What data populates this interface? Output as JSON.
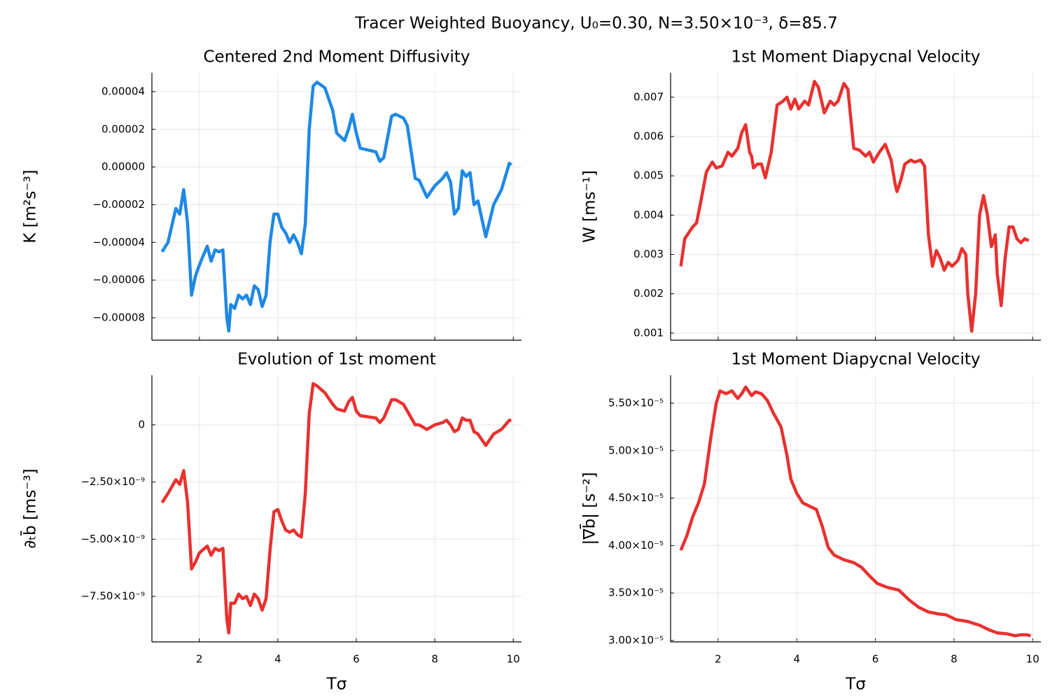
{
  "title": "Tracer Weighted Buoyancy, U₀=0.30, N=3.50×10⁻³, δ=85.7",
  "chart_data": [
    {
      "type": "line",
      "title": "Centered 2nd Moment Diffusivity",
      "ylabel": "K [m²s⁻³]",
      "color": "#1e88e5",
      "grid": true,
      "x_tick_labels": false,
      "xlim": [
        0.79,
        10.21
      ],
      "ylim": [
        -9.19e-05,
        5e-05
      ],
      "xticks": [
        2,
        4,
        6,
        8,
        10
      ],
      "yticks": [
        {
          "value": 4e-05,
          "label": "0.00004"
        },
        {
          "value": 2e-05,
          "label": "0.00002"
        },
        {
          "value": 0,
          "label": "0.00000"
        },
        {
          "value": -2e-05,
          "label": "−0.00002"
        },
        {
          "value": -4e-05,
          "label": "−0.00004"
        },
        {
          "value": -6e-05,
          "label": "−0.00006"
        },
        {
          "value": -8e-05,
          "label": "−0.00008"
        }
      ],
      "x": [
        1.05,
        1.2,
        1.4,
        1.5,
        1.6,
        1.7,
        1.8,
        1.9,
        2.0,
        2.2,
        2.3,
        2.4,
        2.5,
        2.6,
        2.7,
        2.75,
        2.8,
        2.9,
        3.0,
        3.1,
        3.2,
        3.3,
        3.4,
        3.5,
        3.6,
        3.7,
        3.8,
        3.9,
        4.0,
        4.1,
        4.2,
        4.3,
        4.4,
        4.5,
        4.6,
        4.7,
        4.8,
        4.9,
        5.0,
        5.2,
        5.4,
        5.5,
        5.7,
        5.8,
        5.9,
        6.0,
        6.1,
        6.3,
        6.5,
        6.6,
        6.7,
        6.9,
        7.0,
        7.2,
        7.3,
        7.5,
        7.6,
        7.8,
        8.0,
        8.2,
        8.3,
        8.4,
        8.5,
        8.6,
        8.7,
        8.8,
        8.9,
        9.0,
        9.1,
        9.3,
        9.5,
        9.7,
        9.8,
        9.9,
        9.95
      ],
      "values": [
        -4.5e-05,
        -4e-05,
        -2.2e-05,
        -2.5e-05,
        -1.2e-05,
        -3e-05,
        -6.8e-05,
        -5.8e-05,
        -5.2e-05,
        -4.2e-05,
        -5e-05,
        -4.4e-05,
        -4.5e-05,
        -4.4e-05,
        -8e-05,
        -8.7e-05,
        -7.3e-05,
        -7.5e-05,
        -6.8e-05,
        -7e-05,
        -6.8e-05,
        -7.3e-05,
        -6.3e-05,
        -6.5e-05,
        -7.4e-05,
        -6.8e-05,
        -4e-05,
        -2.5e-05,
        -2.5e-05,
        -3.2e-05,
        -3.5e-05,
        -4e-05,
        -3.6e-05,
        -4e-05,
        -4.6e-05,
        -3e-05,
        2e-05,
        4.3e-05,
        4.5e-05,
        4.2e-05,
        3e-05,
        1.8e-05,
        1.4e-05,
        2e-05,
        2.8e-05,
        1.8e-05,
        1e-05,
        9e-06,
        8e-06,
        3e-06,
        5e-06,
        2.7e-05,
        2.8e-05,
        2.6e-05,
        2.2e-05,
        -6e-06,
        -7e-06,
        -1.6e-05,
        -1e-05,
        -6e-06,
        -3e-06,
        -8e-06,
        -2.5e-05,
        -2.2e-05,
        -2e-06,
        -5e-06,
        -3e-06,
        -2e-05,
        -1.8e-05,
        -3.7e-05,
        -2e-05,
        -1.2e-05,
        -5e-06,
        2e-06,
        1e-06
      ]
    },
    {
      "type": "line",
      "title": "1st Moment Diapycnal Velocity",
      "ylabel": "W [ms⁻¹]",
      "color": "#e8312f",
      "grid": true,
      "x_tick_labels": false,
      "xlim": [
        0.79,
        10.21
      ],
      "ylim": [
        0.00082,
        0.00762
      ],
      "xticks": [
        2,
        4,
        6,
        8,
        10
      ],
      "yticks": [
        0.007,
        0.006,
        0.005,
        0.004,
        0.003,
        0.002,
        0.001
      ],
      "x": [
        1.05,
        1.15,
        1.25,
        1.35,
        1.45,
        1.55,
        1.7,
        1.85,
        1.95,
        2.1,
        2.25,
        2.35,
        2.5,
        2.6,
        2.7,
        2.8,
        2.85,
        2.9,
        3.0,
        3.1,
        3.2,
        3.35,
        3.5,
        3.65,
        3.75,
        3.85,
        3.95,
        4.05,
        4.2,
        4.3,
        4.45,
        4.55,
        4.7,
        4.85,
        4.95,
        5.05,
        5.2,
        5.3,
        5.45,
        5.6,
        5.75,
        5.85,
        5.95,
        6.1,
        6.25,
        6.4,
        6.5,
        6.55,
        6.65,
        6.75,
        6.9,
        7.0,
        7.15,
        7.25,
        7.35,
        7.45,
        7.55,
        7.65,
        7.75,
        7.85,
        7.95,
        8.1,
        8.2,
        8.3,
        8.35,
        8.45,
        8.55,
        8.65,
        8.75,
        8.85,
        8.95,
        9.05,
        9.1,
        9.2,
        9.3,
        9.4,
        9.5,
        9.6,
        9.7,
        9.8,
        9.9
      ],
      "values": [
        0.0027,
        0.0034,
        0.00355,
        0.0037,
        0.0038,
        0.0043,
        0.0051,
        0.00535,
        0.0052,
        0.00525,
        0.0056,
        0.0055,
        0.0057,
        0.0061,
        0.0063,
        0.0056,
        0.0055,
        0.0052,
        0.0053,
        0.0053,
        0.00495,
        0.0056,
        0.0068,
        0.0069,
        0.007,
        0.0067,
        0.00695,
        0.0067,
        0.0069,
        0.0068,
        0.0074,
        0.00725,
        0.0066,
        0.0069,
        0.0068,
        0.0069,
        0.00735,
        0.0072,
        0.0057,
        0.00565,
        0.0055,
        0.0056,
        0.00535,
        0.0056,
        0.0058,
        0.0054,
        0.0048,
        0.0046,
        0.0049,
        0.0053,
        0.0054,
        0.00535,
        0.0054,
        0.00525,
        0.0035,
        0.0027,
        0.0031,
        0.0029,
        0.0026,
        0.0028,
        0.0027,
        0.00285,
        0.00315,
        0.003,
        0.002,
        0.00105,
        0.002,
        0.004,
        0.0045,
        0.004,
        0.0032,
        0.0035,
        0.0025,
        0.0017,
        0.0029,
        0.0037,
        0.0037,
        0.0034,
        0.0033,
        0.0034,
        0.00335
      ]
    },
    {
      "type": "line",
      "title": "Evolution of 1st moment",
      "ylabel": "∂ₜb̄ [ms⁻³]",
      "xlabel": "Tσ",
      "color": "#e8312f",
      "grid": true,
      "x_tick_labels": true,
      "xlim": [
        0.79,
        10.21
      ],
      "ylim": [
        -9.49e-09,
        2.17e-09
      ],
      "xticks": [
        2,
        4,
        6,
        8,
        10
      ],
      "yticks": [
        0,
        {
          "value": -2.5e-09,
          "label": "−2.50×10⁻⁹"
        },
        {
          "value": -5e-09,
          "label": "−5.00×10⁻⁹"
        },
        {
          "value": -7.5e-09,
          "label": "−7.50×10⁻⁹"
        }
      ],
      "x": [
        1.05,
        1.2,
        1.4,
        1.5,
        1.6,
        1.7,
        1.8,
        1.9,
        2.0,
        2.2,
        2.3,
        2.4,
        2.5,
        2.6,
        2.7,
        2.75,
        2.8,
        2.9,
        3.0,
        3.1,
        3.2,
        3.3,
        3.4,
        3.5,
        3.6,
        3.7,
        3.8,
        3.9,
        4.0,
        4.1,
        4.2,
        4.3,
        4.4,
        4.5,
        4.6,
        4.7,
        4.8,
        4.9,
        5.0,
        5.2,
        5.4,
        5.5,
        5.7,
        5.8,
        5.9,
        6.0,
        6.1,
        6.3,
        6.5,
        6.6,
        6.7,
        6.9,
        7.0,
        7.2,
        7.3,
        7.5,
        7.6,
        7.8,
        8.0,
        8.2,
        8.3,
        8.4,
        8.5,
        8.6,
        8.7,
        8.8,
        8.9,
        9.0,
        9.1,
        9.3,
        9.5,
        9.7,
        9.8,
        9.9,
        9.95
      ],
      "values": [
        -3.4e-09,
        -3e-09,
        -2.4e-09,
        -2.6e-09,
        -2e-09,
        -3.4e-09,
        -6.3e-09,
        -6e-09,
        -5.6e-09,
        -5.3e-09,
        -5.7e-09,
        -5.4e-09,
        -5.5e-09,
        -5.4e-09,
        -8.5e-09,
        -9.1e-09,
        -7.8e-09,
        -7.8e-09,
        -7.4e-09,
        -7.6e-09,
        -7.5e-09,
        -7.9e-09,
        -7.4e-09,
        -7.6e-09,
        -8.1e-09,
        -7.6e-09,
        -5.5e-09,
        -3.8e-09,
        -3.7e-09,
        -4.2e-09,
        -4.6e-09,
        -4.7e-09,
        -4.6e-09,
        -4.8e-09,
        -4.9e-09,
        -3e-09,
        5e-10,
        1.8e-09,
        1.7e-09,
        1.4e-09,
        9e-10,
        7e-10,
        6e-10,
        1e-09,
        1.2e-09,
        6e-10,
        4e-10,
        3.5e-10,
        3e-10,
        1e-10,
        3e-10,
        1.1e-09,
        1.1e-09,
        9e-10,
        6e-10,
        0.0,
        0.0,
        -2e-10,
        0.0,
        1e-10,
        2e-10,
        0.0,
        -3e-10,
        -2e-10,
        3e-10,
        2e-10,
        2e-10,
        -3e-10,
        -4e-10,
        -9e-10,
        -4e-10,
        -2e-10,
        0.0,
        2e-10,
        2e-10
      ]
    },
    {
      "type": "line",
      "title": "1st Moment Diapycnal Velocity",
      "ylabel": "|∇b̄| [s⁻²]",
      "xlabel": "Tσ",
      "color": "#e8312f",
      "grid": true,
      "x_tick_labels": true,
      "xlim": [
        0.79,
        10.21
      ],
      "ylim": [
        2.985e-05,
        5.795e-05
      ],
      "xticks": [
        2,
        4,
        6,
        8,
        10
      ],
      "yticks": [
        {
          "value": 5.5e-05,
          "label": "5.50×10⁻⁵"
        },
        {
          "value": 5e-05,
          "label": "5.00×10⁻⁵"
        },
        {
          "value": 4.5e-05,
          "label": "4.50×10⁻⁵"
        },
        {
          "value": 4e-05,
          "label": "4.00×10⁻⁵"
        },
        {
          "value": 3.5e-05,
          "label": "3.50×10⁻⁵"
        },
        {
          "value": 3e-05,
          "label": "3.00×10⁻⁵"
        }
      ],
      "x": [
        1.05,
        1.2,
        1.35,
        1.5,
        1.65,
        1.8,
        1.95,
        2.05,
        2.2,
        2.35,
        2.5,
        2.6,
        2.7,
        2.85,
        2.95,
        3.1,
        3.25,
        3.4,
        3.6,
        3.75,
        3.85,
        4.0,
        4.15,
        4.3,
        4.5,
        4.65,
        4.8,
        4.95,
        5.2,
        5.45,
        5.65,
        5.85,
        6.05,
        6.3,
        6.6,
        6.85,
        7.1,
        7.35,
        7.6,
        7.8,
        8.05,
        8.35,
        8.65,
        8.9,
        9.1,
        9.35,
        9.55,
        9.7,
        9.85,
        9.95
      ],
      "values": [
        3.95e-05,
        4.1e-05,
        4.3e-05,
        4.45e-05,
        4.65e-05,
        5.1e-05,
        5.5e-05,
        5.63e-05,
        5.6e-05,
        5.63e-05,
        5.55e-05,
        5.6e-05,
        5.67e-05,
        5.58e-05,
        5.62e-05,
        5.6e-05,
        5.53e-05,
        5.4e-05,
        5.25e-05,
        4.95e-05,
        4.7e-05,
        4.55e-05,
        4.45e-05,
        4.42e-05,
        4.38e-05,
        4.2e-05,
        3.98e-05,
        3.9e-05,
        3.85e-05,
        3.82e-05,
        3.77e-05,
        3.68e-05,
        3.6e-05,
        3.56e-05,
        3.53e-05,
        3.43e-05,
        3.35e-05,
        3.3e-05,
        3.28e-05,
        3.27e-05,
        3.22e-05,
        3.2e-05,
        3.16e-05,
        3.11e-05,
        3.08e-05,
        3.07e-05,
        3.05e-05,
        3.06e-05,
        3.06e-05,
        3.05e-05
      ]
    }
  ]
}
